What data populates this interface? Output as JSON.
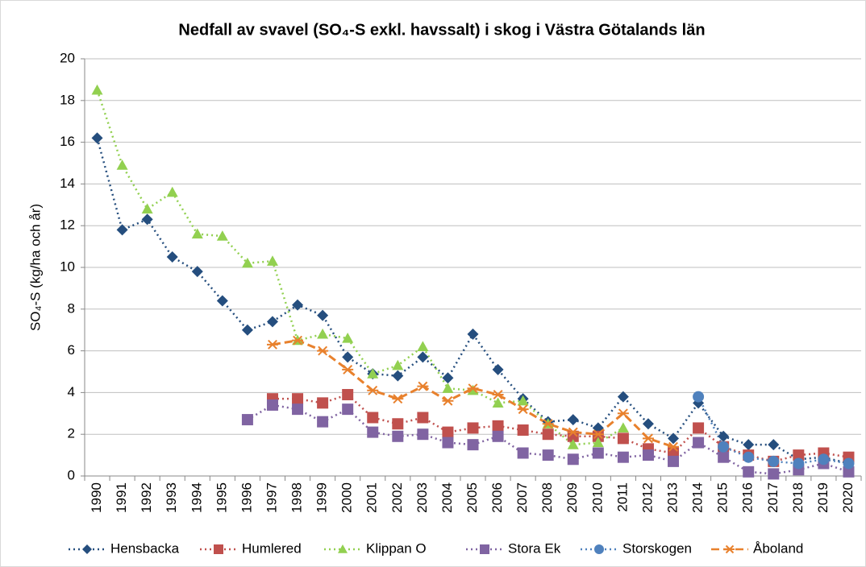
{
  "chart_data": {
    "type": "line",
    "title": "Nedfall av svavel (SO₄-S exkl. havssalt) i skog i Västra Götalands län",
    "y_label": "SO₄-S (kg/ha och år)",
    "categories": [
      "1990",
      "1991",
      "1992",
      "1993",
      "1994",
      "1995",
      "1996",
      "1997",
      "1998",
      "1999",
      "2000",
      "2001",
      "2002",
      "2003",
      "2004",
      "2005",
      "2006",
      "2007",
      "2008",
      "2009",
      "2010",
      "2011",
      "2012",
      "2013",
      "2014",
      "2015",
      "2016",
      "2017",
      "2018",
      "2019",
      "2020"
    ],
    "ylim": [
      0,
      20
    ],
    "yticks": [
      0,
      2,
      4,
      6,
      8,
      10,
      12,
      14,
      16,
      18,
      20
    ],
    "grid": true,
    "legend": "bottom",
    "series": [
      {
        "name": "Hensbacka",
        "color": "#254e7e",
        "marker": "diamond",
        "dash": "dotted",
        "values": [
          16.2,
          11.8,
          12.3,
          10.5,
          9.8,
          8.4,
          7.0,
          7.4,
          8.2,
          7.7,
          5.7,
          4.9,
          4.8,
          5.7,
          4.7,
          6.8,
          5.1,
          3.7,
          2.6,
          2.7,
          2.3,
          3.8,
          2.5,
          1.8,
          3.5,
          1.9,
          1.5,
          1.5,
          0.8,
          0.9,
          0.6
        ]
      },
      {
        "name": "Humlered",
        "color": "#c0504d",
        "marker": "square",
        "dash": "dotted",
        "values": [
          null,
          null,
          null,
          null,
          null,
          null,
          null,
          3.7,
          3.7,
          3.5,
          3.9,
          2.8,
          2.5,
          2.8,
          2.1,
          2.3,
          2.4,
          2.2,
          2.0,
          1.9,
          1.9,
          1.8,
          1.3,
          1.1,
          2.3,
          1.4,
          1.0,
          0.7,
          1.0,
          1.1,
          0.9
        ]
      },
      {
        "name": "Klippan O",
        "color": "#92d050",
        "marker": "triangle",
        "dash": "dotted",
        "values": [
          18.5,
          14.9,
          12.8,
          13.6,
          11.6,
          11.5,
          10.2,
          10.3,
          6.5,
          6.8,
          6.6,
          4.9,
          5.3,
          6.2,
          4.2,
          4.1,
          3.5,
          3.6,
          2.5,
          1.5,
          1.6,
          2.3,
          null,
          null,
          null,
          null,
          null,
          null,
          null,
          null,
          null
        ]
      },
      {
        "name": "Stora Ek",
        "color": "#8064a2",
        "marker": "square",
        "dash": "dotted",
        "values": [
          null,
          null,
          null,
          null,
          null,
          null,
          2.7,
          3.4,
          3.2,
          2.6,
          3.2,
          2.1,
          1.9,
          2.0,
          1.6,
          1.5,
          1.9,
          1.1,
          1.0,
          0.8,
          1.1,
          0.9,
          1.0,
          0.7,
          1.6,
          0.9,
          0.2,
          0.1,
          0.3,
          0.6,
          0.2
        ]
      },
      {
        "name": "Storskogen",
        "color": "#4f81bd",
        "marker": "circle",
        "dash": "dotted",
        "values": [
          null,
          null,
          null,
          null,
          null,
          null,
          null,
          null,
          null,
          null,
          null,
          null,
          null,
          null,
          null,
          null,
          null,
          null,
          null,
          null,
          null,
          null,
          null,
          null,
          3.8,
          1.4,
          0.9,
          0.7,
          0.6,
          0.8,
          0.6
        ]
      },
      {
        "name": "Åboland",
        "color": "#e8812d",
        "marker": "star",
        "dash": "dashed",
        "values": [
          null,
          null,
          null,
          null,
          null,
          null,
          null,
          6.3,
          6.5,
          6.0,
          5.1,
          4.1,
          3.7,
          4.3,
          3.6,
          4.2,
          3.9,
          3.2,
          2.5,
          2.1,
          2.0,
          3.0,
          1.8,
          1.4,
          null,
          null,
          null,
          null,
          null,
          null,
          null
        ]
      }
    ]
  }
}
